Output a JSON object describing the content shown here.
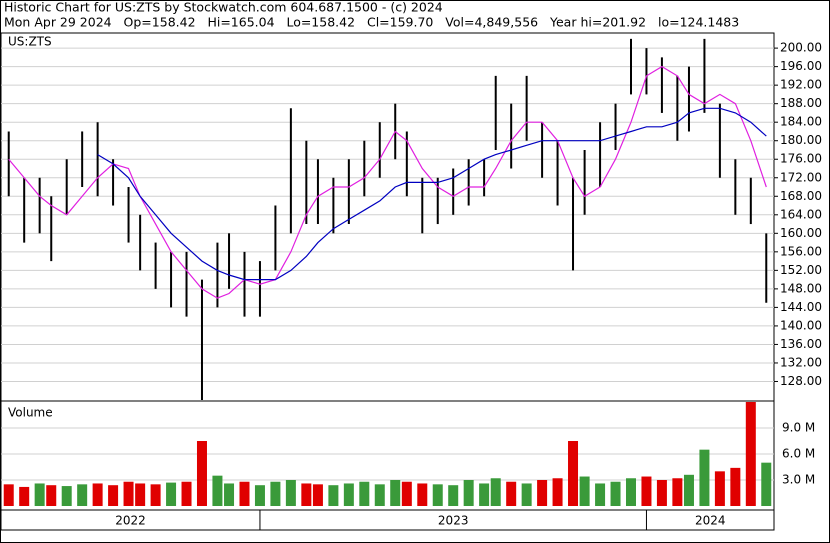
{
  "chart_data": {
    "type": "ohlc",
    "title": "Historic Chart for US:ZTS by Stockwatch.com 604.687.1500 - (c) 2024",
    "subtitle": "Mon Apr 29 2024   Op=158.42   Hi=165.04   Lo=158.42   Cl=159.70   Vol=4,849,556   Year hi=201.92   lo=124.1483",
    "symbol_label": "US:ZTS",
    "x": [
      2022.35,
      2022.39,
      2022.43,
      2022.46,
      2022.5,
      2022.54,
      2022.58,
      2022.62,
      2022.66,
      2022.69,
      2022.73,
      2022.77,
      2022.81,
      2022.85,
      2022.89,
      2022.92,
      2022.96,
      2023.0,
      2023.04,
      2023.08,
      2023.12,
      2023.15,
      2023.19,
      2023.23,
      2023.27,
      2023.31,
      2023.35,
      2023.38,
      2023.42,
      2023.46,
      2023.5,
      2023.54,
      2023.58,
      2023.61,
      2023.65,
      2023.69,
      2023.73,
      2023.77,
      2023.81,
      2023.84,
      2023.88,
      2023.92,
      2023.96,
      2024.0,
      2024.04,
      2024.08,
      2024.11,
      2024.15,
      2024.19,
      2024.23,
      2024.27,
      2024.31
    ],
    "xlim": [
      2022.33,
      2024.33
    ],
    "xticks": [
      {
        "value": 2022,
        "label": "2022"
      },
      {
        "value": 2023,
        "label": "2023"
      },
      {
        "value": 2024,
        "label": "2024"
      }
    ],
    "price": {
      "color": "#000000",
      "high": [
        182,
        172,
        172,
        168,
        176,
        182,
        184,
        176,
        170,
        164,
        158,
        156,
        156,
        150,
        158,
        160,
        156,
        154,
        166,
        187,
        180,
        176,
        172,
        176,
        180,
        184,
        188,
        182,
        172,
        172,
        174,
        176,
        176,
        194,
        188,
        194,
        184,
        180,
        172,
        178,
        184,
        188,
        202,
        200,
        198,
        194,
        196,
        202,
        188,
        176,
        172,
        160
      ],
      "low": [
        168,
        158,
        160,
        154,
        164,
        170,
        168,
        166,
        158,
        152,
        148,
        144,
        142,
        124,
        144,
        148,
        142,
        142,
        152,
        160,
        162,
        162,
        160,
        162,
        168,
        172,
        176,
        168,
        160,
        162,
        164,
        166,
        168,
        178,
        174,
        180,
        172,
        166,
        152,
        164,
        170,
        178,
        190,
        190,
        186,
        180,
        182,
        186,
        172,
        164,
        162,
        145
      ]
    },
    "ylim": [
      124,
      202.4
    ],
    "yticks": [
      {
        "value": 128,
        "label": "128.00"
      },
      {
        "value": 132,
        "label": "132.00"
      },
      {
        "value": 136,
        "label": "136.00"
      },
      {
        "value": 140,
        "label": "140.00"
      },
      {
        "value": 144,
        "label": "144.00"
      },
      {
        "value": 148,
        "label": "148.00"
      },
      {
        "value": 152,
        "label": "152.00"
      },
      {
        "value": 156,
        "label": "156.00"
      },
      {
        "value": 160,
        "label": "160.00"
      },
      {
        "value": 164,
        "label": "164.00"
      },
      {
        "value": 168,
        "label": "168.00"
      },
      {
        "value": 172,
        "label": "172.00"
      },
      {
        "value": 176,
        "label": "176.00"
      },
      {
        "value": 180,
        "label": "180.00"
      },
      {
        "value": 184,
        "label": "184.00"
      },
      {
        "value": 188,
        "label": "188.00"
      },
      {
        "value": 192,
        "label": "192.00"
      },
      {
        "value": 196,
        "label": "196.00"
      },
      {
        "value": 200,
        "label": "200.00"
      }
    ],
    "moving_averages": [
      {
        "color": "#e020e0",
        "values": [
          176,
          172,
          168,
          166,
          164,
          168,
          172,
          175,
          174,
          168,
          162,
          156,
          152,
          148,
          146,
          147,
          150,
          149,
          150,
          156,
          164,
          168,
          170,
          170,
          172,
          176,
          182,
          180,
          174,
          170,
          168,
          170,
          170,
          174,
          180,
          184,
          184,
          180,
          172,
          168,
          170,
          176,
          184,
          194,
          196,
          194,
          190,
          188,
          190,
          188,
          180,
          170
        ]
      },
      {
        "color": "#0000c0",
        "values": [
          null,
          null,
          null,
          null,
          null,
          null,
          177,
          175,
          172,
          168,
          164,
          160,
          157,
          154,
          152,
          151,
          150,
          150,
          150,
          152,
          155,
          158,
          161,
          163,
          165,
          167,
          170,
          171,
          171,
          171,
          172,
          174,
          176,
          177,
          178,
          179,
          180,
          180,
          180,
          180,
          180,
          181,
          182,
          183,
          183,
          184,
          186,
          187,
          187,
          186,
          184,
          181
        ]
      }
    ],
    "grid": true,
    "volume": {
      "title": "Volume",
      "values": [
        2.5,
        2.2,
        2.6,
        2.4,
        2.3,
        2.5,
        2.6,
        2.4,
        2.8,
        2.6,
        2.5,
        2.7,
        2.8,
        7.5,
        3.5,
        2.6,
        2.8,
        2.4,
        2.8,
        3.0,
        2.6,
        2.5,
        2.4,
        2.6,
        2.8,
        2.5,
        3.0,
        2.8,
        2.6,
        2.5,
        2.4,
        3.0,
        2.6,
        3.2,
        2.8,
        2.6,
        3.0,
        3.2,
        7.5,
        3.4,
        2.6,
        2.8,
        3.2,
        3.4,
        3.0,
        3.2,
        3.6,
        6.5,
        4.0,
        4.4,
        12.0,
        5.0
      ],
      "colors": [
        "#e00000",
        "#e00000",
        "#3a9a3a",
        "#e00000",
        "#3a9a3a",
        "#3a9a3a",
        "#e00000",
        "#e00000",
        "#e00000",
        "#e00000",
        "#e00000",
        "#3a9a3a",
        "#e00000",
        "#e00000",
        "#3a9a3a",
        "#3a9a3a",
        "#e00000",
        "#3a9a3a",
        "#3a9a3a",
        "#3a9a3a",
        "#e00000",
        "#e00000",
        "#3a9a3a",
        "#3a9a3a",
        "#3a9a3a",
        "#3a9a3a",
        "#3a9a3a",
        "#e00000",
        "#e00000",
        "#3a9a3a",
        "#3a9a3a",
        "#3a9a3a",
        "#3a9a3a",
        "#3a9a3a",
        "#e00000",
        "#3a9a3a",
        "#e00000",
        "#e00000",
        "#e00000",
        "#3a9a3a",
        "#3a9a3a",
        "#3a9a3a",
        "#3a9a3a",
        "#e00000",
        "#e00000",
        "#e00000",
        "#3a9a3a",
        "#3a9a3a",
        "#e00000",
        "#e00000",
        "#e00000",
        "#3a9a3a"
      ],
      "ylim": [
        0,
        12
      ],
      "yticks": [
        {
          "value": 3,
          "label": "3.0 M"
        },
        {
          "value": 6,
          "label": "6.0 M"
        },
        {
          "value": 9,
          "label": "9.0 M"
        }
      ]
    }
  }
}
